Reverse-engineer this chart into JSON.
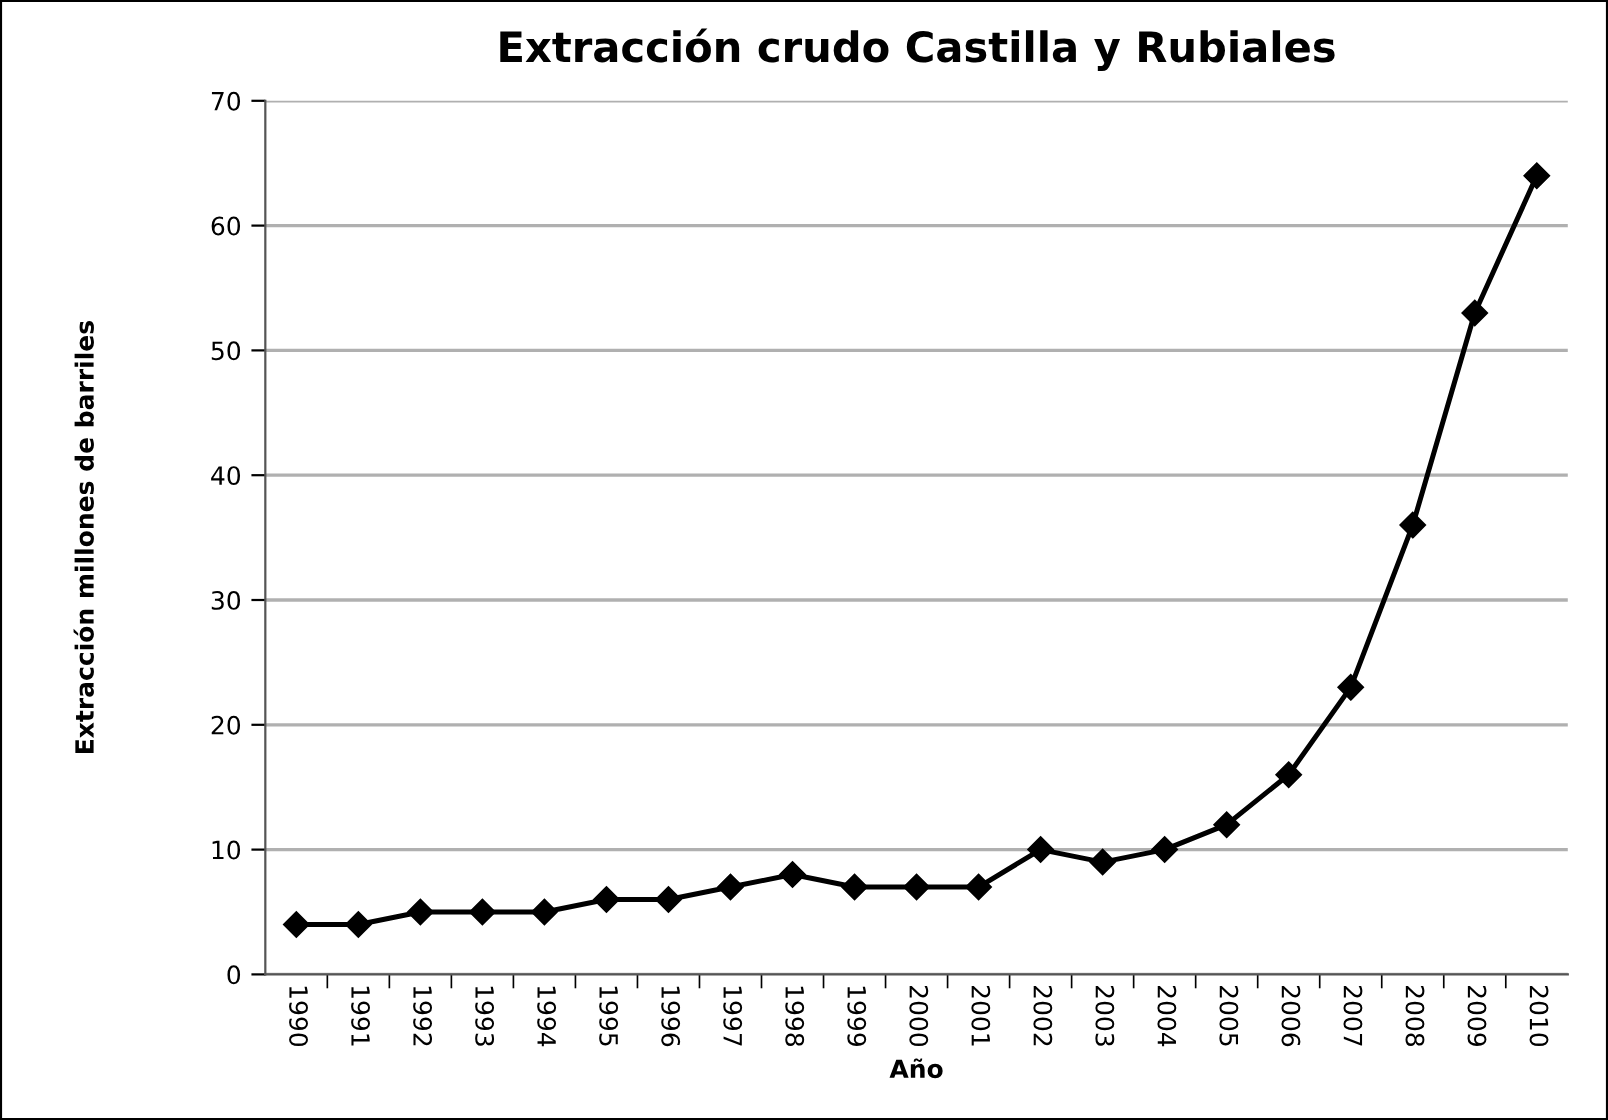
{
  "chart_data": {
    "type": "line",
    "title": "Extracción crudo Castilla y Rubiales",
    "xlabel": "Año",
    "ylabel": "Extracción millones de barriles",
    "categories": [
      "1990",
      "1991",
      "1992",
      "1993",
      "1994",
      "1995",
      "1996",
      "1997",
      "1998",
      "1999",
      "2000",
      "2001",
      "2002",
      "2003",
      "2004",
      "2005",
      "2006",
      "2007",
      "2008",
      "2009",
      "2010"
    ],
    "series": [
      {
        "color": "#000000",
        "values": [
          4,
          4,
          5,
          5,
          5,
          6,
          6,
          7,
          8,
          7,
          7,
          7,
          10,
          9,
          10,
          12,
          16,
          23,
          36,
          53,
          64
        ]
      }
    ],
    "ylim": [
      0,
      70
    ],
    "yticks": [
      0,
      10,
      20,
      30,
      40,
      50,
      60,
      70
    ],
    "grid": "y",
    "marker": "diamond",
    "line_style": "solid"
  }
}
